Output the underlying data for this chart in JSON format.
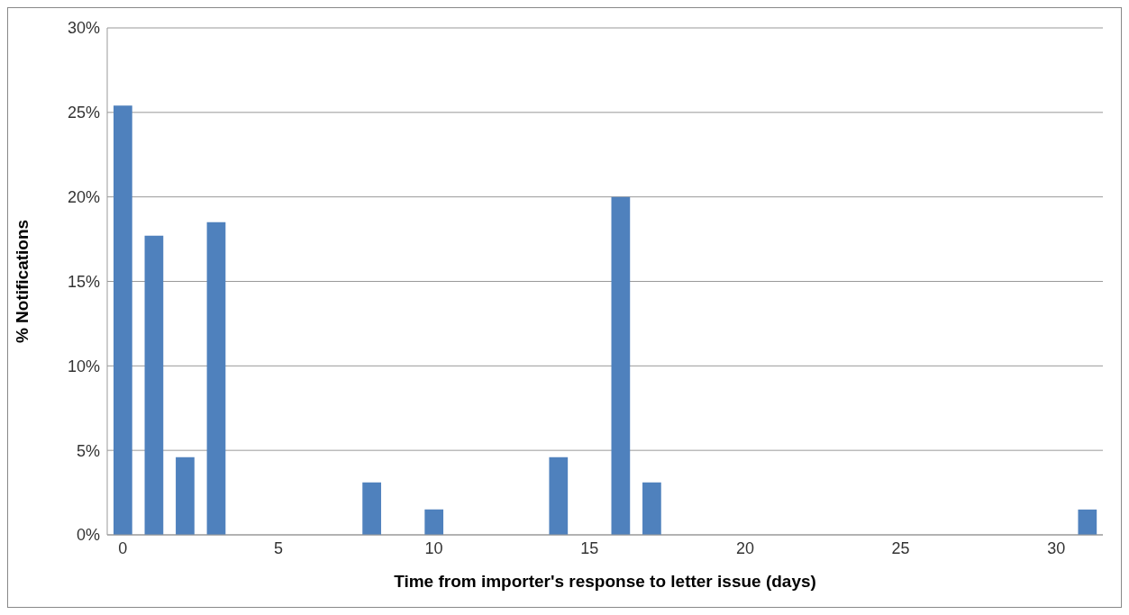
{
  "chart_data": {
    "type": "bar",
    "xlabel": "Time from importer's response to letter issue (days)",
    "ylabel": "% Notifications",
    "x": [
      0,
      1,
      2,
      3,
      8,
      10,
      14,
      16,
      17,
      31
    ],
    "values": [
      25.4,
      17.7,
      4.6,
      18.5,
      3.1,
      1.5,
      4.6,
      20.0,
      3.1,
      1.5
    ],
    "color": "#4f81bd",
    "xlim": [
      -0.5,
      31.5
    ],
    "xticks": [
      0,
      5,
      10,
      15,
      20,
      25,
      30
    ],
    "ylim": [
      0,
      30
    ],
    "yticks": [
      {
        "value": 0,
        "label": "0%"
      },
      {
        "value": 5,
        "label": "5%"
      },
      {
        "value": 10,
        "label": "10%"
      },
      {
        "value": 15,
        "label": "15%"
      },
      {
        "value": 20,
        "label": "20%"
      },
      {
        "value": 25,
        "label": "25%"
      },
      {
        "value": 30,
        "label": "30%"
      }
    ],
    "grid": "y"
  }
}
